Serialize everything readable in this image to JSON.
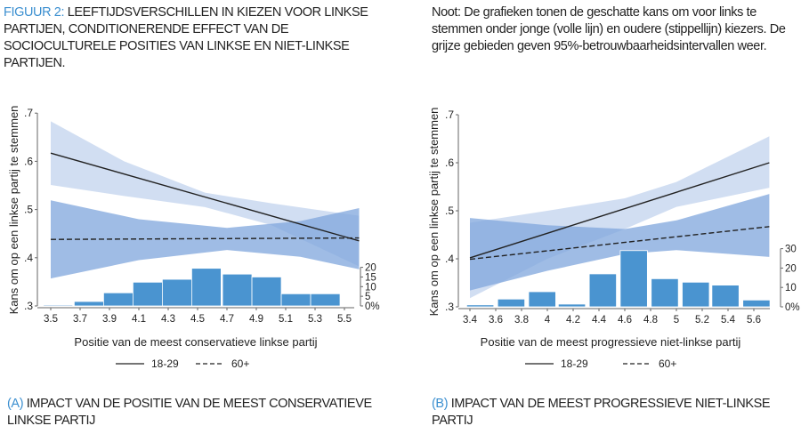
{
  "header": {
    "figure_label": "FIGUUR 2:",
    "title": "LEEFTIJDSVERSCHILLEN IN KIEZEN VOOR LINKSE PARTIJEN, CONDITIONERENDE EFFECT VAN DE SOCIOCULTURELE POSITIES VAN LINKSE EN NIET-LINKSE PARTIJEN.",
    "note": "Noot: De grafieken tonen de geschatte kans om voor links te stemmen onder jonge (volle lijn) en oudere (stippellijn) kiezers. De grijze gebieden geven 95%-betrouwbaarheidsintervallen weer."
  },
  "captions": [
    {
      "label": "(A)",
      "text": "IMPACT VAN DE POSITIE VAN DE MEEST CONSERVATIEVE LINKSE PARTIJ"
    },
    {
      "label": "(B)",
      "text": "IMPACT VAN DE MEEST PROGRESSIEVE NIET-LINKSE PARTIJ"
    }
  ],
  "colors": {
    "accent": "#3b8fd0",
    "ci_young": "#c5d6ef",
    "ci_old": "#7fa6dc",
    "bars": "#4a94d0",
    "line": "#222222"
  },
  "chart_data": [
    {
      "type": "line",
      "xlabel": "Positie van de meest conservatieve linkse partij",
      "ylabel": "Kans om op een linkse partij te stemmen",
      "xlim": [
        3.5,
        5.6
      ],
      "ylim": [
        0.3,
        0.7
      ],
      "xticks": [
        "3.5",
        "3.7",
        "3.9",
        "4.1",
        "4.3",
        "4.5",
        "4.7",
        "4.9",
        "5.1",
        "5.3",
        "5.5"
      ],
      "yticks": [
        ".3",
        ".4",
        ".5",
        ".6",
        ".7"
      ],
      "series": [
        {
          "name": "18-29",
          "style": "solid",
          "x": [
            3.5,
            5.6
          ],
          "y": [
            0.617,
            0.435
          ],
          "ci_x": [
            3.5,
            4.0,
            4.55,
            5.0,
            5.6
          ],
          "ci_upper": [
            0.683,
            0.6,
            0.535,
            0.513,
            0.487
          ],
          "ci_lower": [
            0.551,
            0.528,
            0.505,
            0.468,
            0.382
          ]
        },
        {
          "name": "60+",
          "style": "dashed",
          "x": [
            3.5,
            5.6
          ],
          "y": [
            0.438,
            0.441
          ],
          "ci_x": [
            3.5,
            4.1,
            4.7,
            5.2,
            5.6
          ],
          "ci_upper": [
            0.519,
            0.48,
            0.462,
            0.476,
            0.503
          ],
          "ci_lower": [
            0.357,
            0.395,
            0.416,
            0.402,
            0.376
          ]
        }
      ],
      "histogram": {
        "axis_ticks": [
          "0%",
          "5",
          "10",
          "15",
          "20"
        ],
        "axis_values": [
          0,
          5,
          10,
          15,
          20
        ],
        "bin_width": 0.2,
        "bin_centers": [
          3.55,
          3.76,
          3.96,
          4.16,
          4.36,
          4.56,
          4.77,
          4.97,
          5.17,
          5.37
        ],
        "percent": [
          0.5,
          2.3,
          6.8,
          12.3,
          13.8,
          19.5,
          16.5,
          15,
          6.3,
          6.3
        ]
      }
    },
    {
      "type": "line",
      "xlabel": "Positie van de meest progressieve niet-linkse partij",
      "ylabel": "Kans om op een linkse partij te stemmen",
      "xlim": [
        3.4,
        5.72
      ],
      "ylim": [
        0.3,
        0.7
      ],
      "xticks": [
        "3.4",
        "3.6",
        "3.8",
        "4",
        "4.2",
        "4.4",
        "4.6",
        "4.8",
        "5",
        "5.2",
        "5.4",
        "5.6"
      ],
      "yticks": [
        ".3",
        ".4",
        ".5",
        ".6",
        ".7"
      ],
      "series": [
        {
          "name": "18-29",
          "style": "solid",
          "x": [
            3.4,
            5.72
          ],
          "y": [
            0.402,
            0.6
          ],
          "ci_x": [
            3.4,
            4.0,
            4.6,
            5.0,
            5.72
          ],
          "ci_upper": [
            0.475,
            0.5,
            0.526,
            0.56,
            0.655
          ],
          "ci_lower": [
            0.318,
            0.4,
            0.462,
            0.508,
            0.548
          ]
        },
        {
          "name": "60+",
          "style": "dashed",
          "x": [
            3.4,
            5.72
          ],
          "y": [
            0.399,
            0.467
          ],
          "ci_x": [
            3.4,
            4.0,
            4.6,
            5.0,
            5.72
          ],
          "ci_upper": [
            0.485,
            0.47,
            0.462,
            0.48,
            0.535
          ],
          "ci_lower": [
            0.334,
            0.375,
            0.41,
            0.418,
            0.404
          ]
        }
      ],
      "histogram": {
        "axis_ticks": [
          "0%",
          "10",
          "20",
          "30"
        ],
        "axis_values": [
          0,
          10,
          20,
          30
        ],
        "bin_width": 0.21,
        "bin_centers": [
          3.48,
          3.72,
          3.96,
          4.19,
          4.43,
          4.67,
          4.91,
          5.15,
          5.38,
          5.62
        ],
        "percent": [
          1,
          4,
          7.8,
          1.4,
          17,
          29,
          14.5,
          12.7,
          11.2,
          3.5
        ]
      }
    }
  ],
  "legend": {
    "items": [
      "18-29",
      "60+"
    ]
  }
}
